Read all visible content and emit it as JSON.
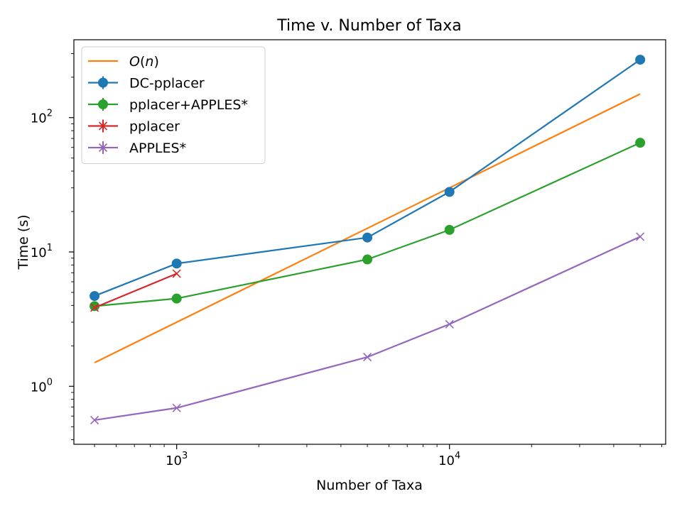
{
  "chart_data": {
    "type": "line",
    "title": "Time v. Number of Taxa",
    "xlabel": "Number of Taxa",
    "ylabel": "Time (s)",
    "x_scale": "log",
    "y_scale": "log",
    "xlim": [
      420,
      62000
    ],
    "ylim": [
      0.37,
      380
    ],
    "x_ticks": [
      {
        "value": 1000,
        "base": "10",
        "exp": "3"
      },
      {
        "value": 10000,
        "base": "10",
        "exp": "4"
      }
    ],
    "y_ticks": [
      {
        "value": 1,
        "base": "10",
        "exp": "0"
      },
      {
        "value": 10,
        "base": "10",
        "exp": "1"
      },
      {
        "value": 100,
        "base": "10",
        "exp": "2"
      }
    ],
    "grid": false,
    "legend_position": "top-left",
    "series": [
      {
        "name": "O(n)",
        "name_math": "O(n)",
        "color": "#ff7f0e",
        "marker": "none",
        "x": [
          500,
          50000
        ],
        "y": [
          1.5,
          150
        ]
      },
      {
        "name": "DC-pplacer",
        "color": "#1f77b4",
        "marker": "circle",
        "x": [
          500,
          1000,
          5000,
          10000,
          50000
        ],
        "y": [
          4.7,
          8.2,
          12.8,
          28,
          270
        ]
      },
      {
        "name": "pplacer+APPLES*",
        "color": "#2ca02c",
        "marker": "circle",
        "x": [
          500,
          1000,
          5000,
          10000,
          50000
        ],
        "y": [
          3.95,
          4.5,
          8.8,
          14.6,
          65
        ]
      },
      {
        "name": "pplacer",
        "color": "#d62728",
        "marker": "x",
        "x": [
          500,
          1000
        ],
        "y": [
          3.85,
          6.9
        ]
      },
      {
        "name": "APPLES*",
        "color": "#9467bd",
        "marker": "x",
        "x": [
          500,
          1000,
          5000,
          10000,
          50000
        ],
        "y": [
          0.56,
          0.69,
          1.65,
          2.9,
          13
        ]
      }
    ]
  }
}
